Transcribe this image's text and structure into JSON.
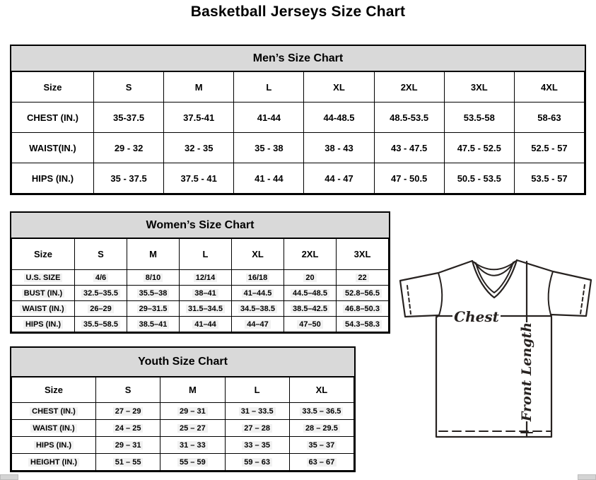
{
  "page": {
    "title": "Basketball Jerseys Size Chart"
  },
  "colors": {
    "section_header_bg": "#d9d9d9",
    "cell_highlight": "#f1f1f1",
    "table_border": "#000000",
    "diagram_line": "#272220"
  },
  "tables": {
    "men": {
      "title": "Men’s Size Chart",
      "header": [
        "Size",
        "S",
        "M",
        "L",
        "XL",
        "2XL",
        "3XL",
        "4XL"
      ],
      "rows": [
        {
          "label": "CHEST (IN.)",
          "values": [
            "35-37.5",
            "37.5-41",
            "41-44",
            "44-48.5",
            "48.5-53.5",
            "53.5-58",
            "58-63"
          ]
        },
        {
          "label": "WAIST(IN.)",
          "values": [
            "29 - 32",
            "32 - 35",
            "35 - 38",
            "38 - 43",
            "43 - 47.5",
            "47.5 - 52.5",
            "52.5 - 57"
          ]
        },
        {
          "label": "HIPS (IN.)",
          "values": [
            "35 - 37.5",
            "37.5 - 41",
            "41 - 44",
            "44 - 47",
            "47 - 50.5",
            "50.5 - 53.5",
            "53.5 - 57"
          ]
        }
      ]
    },
    "women": {
      "title": "Women’s Size Chart",
      "header": [
        "Size",
        "S",
        "M",
        "L",
        "XL",
        "2XL",
        "3XL"
      ],
      "rows": [
        {
          "label": "U.S. SIZE",
          "values": [
            "4/6",
            "8/10",
            "12/14",
            "16/18",
            "20",
            "22"
          ]
        },
        {
          "label": "BUST (IN.)",
          "values": [
            "32.5–35.5",
            "35.5–38",
            "38–41",
            "41–44.5",
            "44.5–48.5",
            "52.8–56.5"
          ]
        },
        {
          "label": "WAIST (IN.)",
          "values": [
            "26–29",
            "29–31.5",
            "31.5–34.5",
            "34.5–38.5",
            "38.5–42.5",
            "46.8–50.3"
          ]
        },
        {
          "label": "HIPS (IN.)",
          "values": [
            "35.5–58.5",
            "38.5–41",
            "41–44",
            "44–47",
            "47–50",
            "54.3–58.3"
          ]
        }
      ]
    },
    "youth": {
      "title": "Youth Size Chart",
      "header": [
        "Size",
        "S",
        "M",
        "L",
        "XL"
      ],
      "rows": [
        {
          "label": "CHEST (IN.)",
          "values": [
            "27 – 29",
            "29 – 31",
            "31 – 33.5",
            "33.5 – 36.5"
          ]
        },
        {
          "label": "WAIST (IN.)",
          "values": [
            "24 – 25",
            "25 – 27",
            "27 – 28",
            "28 – 29.5"
          ]
        },
        {
          "label": "HIPS (IN.)",
          "values": [
            "29 – 31",
            "31 – 33",
            "33 – 35",
            "35 – 37"
          ]
        },
        {
          "label": "HEIGHT (IN.)",
          "values": [
            "51 – 55",
            "55 – 59",
            "59 – 63",
            "63 – 67"
          ]
        }
      ]
    }
  },
  "diagram": {
    "chest_label": "Chest",
    "front_length_label": "Front Length"
  }
}
